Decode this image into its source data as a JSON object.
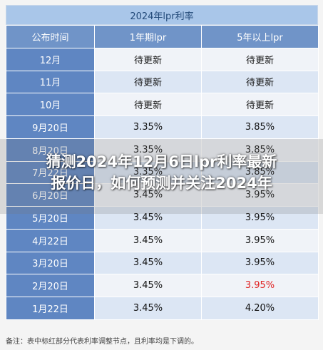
{
  "table_title": "2024年lpr利率",
  "headers": [
    "公布时间",
    "1年期lpr",
    "5年以上lpr"
  ],
  "rows": [
    {
      "date": "12月",
      "one_year": "待更新",
      "five_year": "待更新"
    },
    {
      "date": "11月",
      "one_year": "待更新",
      "five_year": "待更新"
    },
    {
      "date": "10月",
      "one_year": "待更新",
      "five_year": "待更新"
    },
    {
      "date": "9月20日",
      "one_year": "3.35%",
      "five_year": "3.85%"
    },
    {
      "date": "8月20日",
      "one_year": "3.35%",
      "five_year": "3.85%"
    },
    {
      "date": "7月22日",
      "one_year": "3.35%",
      "five_year": "3.85%"
    },
    {
      "date": "6月20日",
      "one_year": "3.45%",
      "five_year": "3.95%"
    },
    {
      "date": "5月20日",
      "one_year": "3.45%",
      "five_year": "3.95%"
    },
    {
      "date": "4月22日",
      "one_year": "3.45%",
      "five_year": "3.95%"
    },
    {
      "date": "3月20日",
      "one_year": "3.45%",
      "five_year": "3.95%"
    },
    {
      "date": "2月20日",
      "one_year": "3.45%",
      "five_year": "3.95%"
    },
    {
      "date": "1月22日",
      "one_year": "3.45%",
      "five_year": "4.20%"
    }
  ],
  "highlight_color": "#e02222",
  "note": "备注：表中标红部分代表利率调整节点，且利率均是下调的。",
  "headline": "猜测2024年12月6日lpr利率最新\n报价日，如何预测并关注2024年"
}
